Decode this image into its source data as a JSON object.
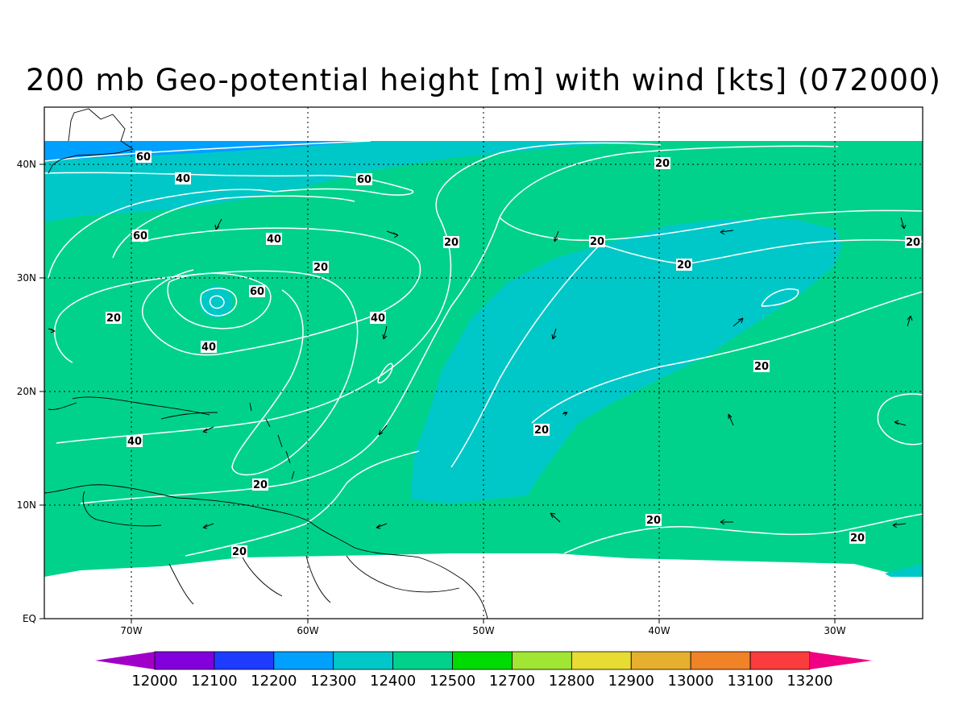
{
  "title": "200 mb Geo-potential height [m] with wind [kts] (072000)",
  "map": {
    "lon_range": [
      -75,
      -25
    ],
    "lat_range": [
      0,
      45
    ],
    "lon_ticks": [
      "70W",
      "60W",
      "50W",
      "40W",
      "30W"
    ],
    "lat_ticks": [
      "EQ",
      "10N",
      "20N",
      "30N",
      "40N"
    ],
    "fill_colors": {
      "12300-12400": "#00c8c8",
      "12200-12300": "#00a0ff",
      "12400-12500": "#00d28c"
    },
    "contour_color": "#ffffff",
    "wind_contour_labels": [
      "60",
      "40",
      "60",
      "60",
      "40",
      "20",
      "60",
      "20",
      "40",
      "40",
      "20",
      "40",
      "20",
      "20",
      "20",
      "20",
      "20",
      "20",
      "20",
      "20",
      "20"
    ]
  },
  "colorbar": {
    "levels": [
      "12000",
      "12100",
      "12200",
      "12300",
      "12400",
      "12500",
      "12700",
      "12800",
      "12900",
      "13000",
      "13100",
      "13200"
    ],
    "colors": [
      "#a000c8",
      "#8200dc",
      "#1e3cff",
      "#00a0ff",
      "#00c8c8",
      "#00d28c",
      "#00dc00",
      "#a0e632",
      "#e6dc32",
      "#e6af2d",
      "#f08228",
      "#fa3c3c",
      "#f00082"
    ]
  }
}
